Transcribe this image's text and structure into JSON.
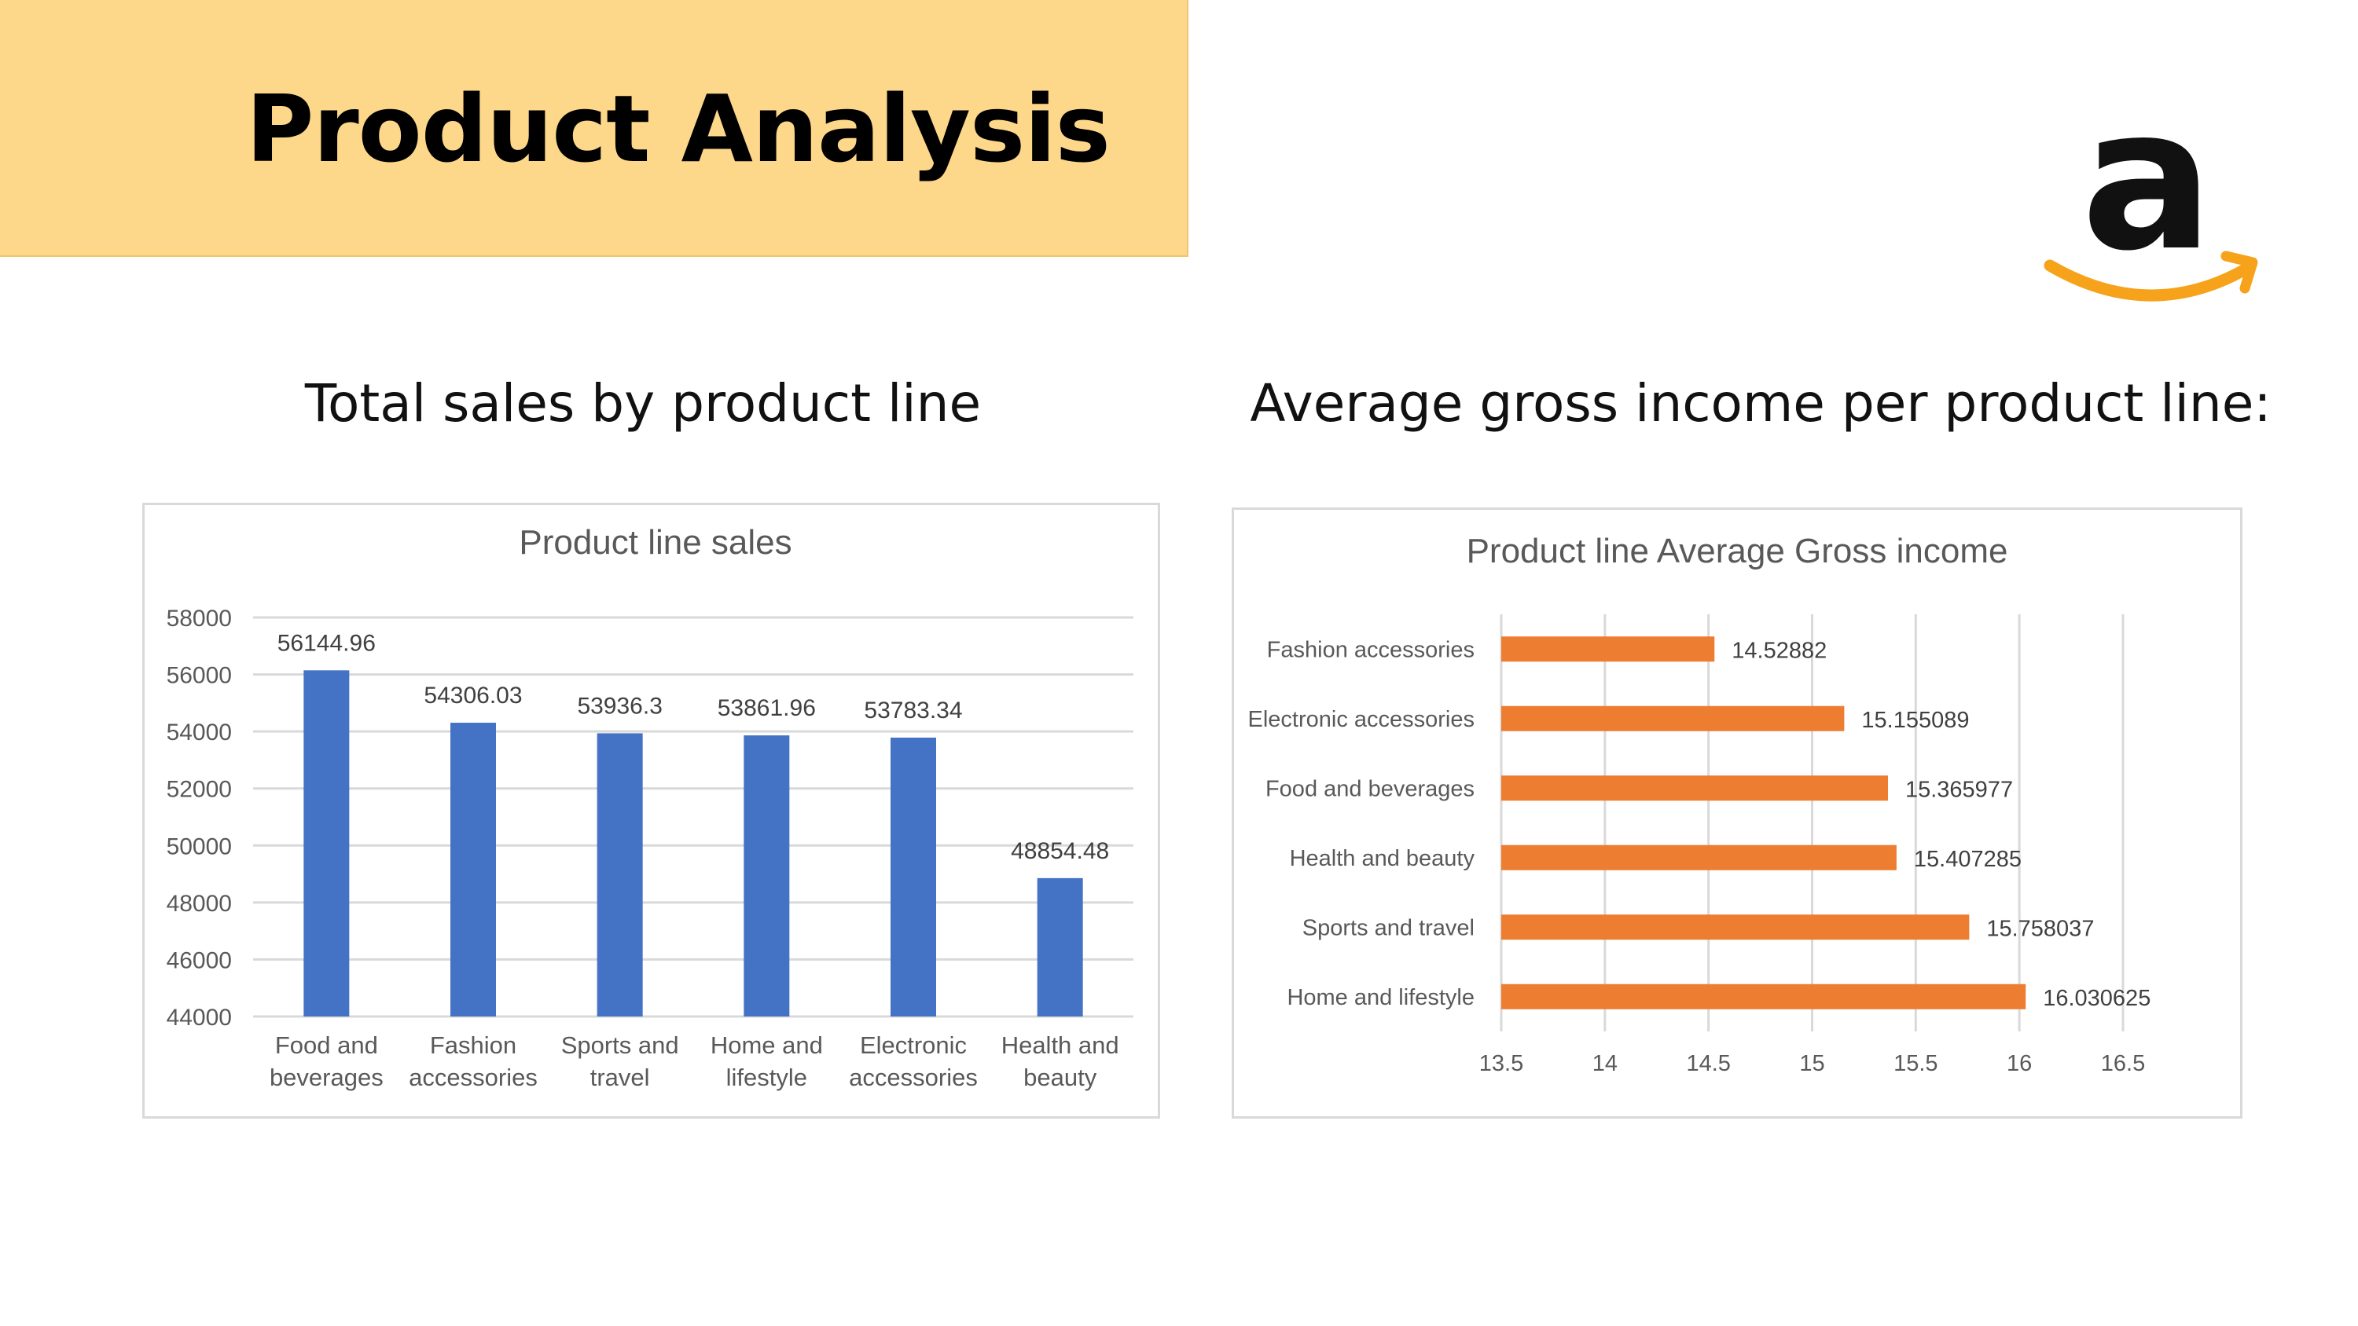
{
  "page": {
    "title": "Product Analysis",
    "left_heading": "Total sales by product line",
    "right_heading": "Average gross income per product line:"
  },
  "logo": {
    "name": "amazon-logo",
    "letter": "a",
    "colors": {
      "letter": "#111111",
      "smile": "#f7a21b"
    }
  },
  "colors": {
    "banner": "#fdd78a",
    "bar_blue": "#4472c4",
    "bar_orange": "#ed7d31",
    "grid": "#d9d9d9",
    "axis_text": "#595959"
  },
  "chart_data": [
    {
      "type": "bar",
      "title": "Product line sales",
      "categories": [
        "Food and beverages",
        "Fashion accessories",
        "Sports and travel",
        "Home and lifestyle",
        "Electronic accessories",
        "Health and beauty"
      ],
      "category_lines": [
        [
          "Food and",
          "beverages"
        ],
        [
          "Fashion",
          "accessories"
        ],
        [
          "Sports and",
          "travel"
        ],
        [
          "Home and",
          "lifestyle"
        ],
        [
          "Electronic",
          "accessories"
        ],
        [
          "Health and",
          "beauty"
        ]
      ],
      "values": [
        56144.96,
        54306.03,
        53936.3,
        53861.96,
        53783.34,
        48854.48
      ],
      "data_labels": [
        "56144.96",
        "54306.03",
        "53936.3",
        "53861.96",
        "53783.34",
        "48854.48"
      ],
      "ylim": [
        44000,
        58000
      ],
      "yticks": [
        44000,
        46000,
        48000,
        50000,
        52000,
        54000,
        56000,
        58000
      ],
      "xlabel": "",
      "ylabel": "",
      "grid": true,
      "legend": "none",
      "color": "#4472c4"
    },
    {
      "type": "bar",
      "orientation": "horizontal",
      "title": "Product line Average Gross income",
      "categories": [
        "Fashion accessories",
        "Electronic accessories",
        "Food and beverages",
        "Health and beauty",
        "Sports and travel",
        "Home and lifestyle"
      ],
      "values": [
        14.52882,
        15.155089,
        15.365977,
        15.407285,
        15.758037,
        16.030625
      ],
      "data_labels": [
        "14.52882",
        "15.155089",
        "15.365977",
        "15.407285",
        "15.758037",
        "16.030625"
      ],
      "xlim": [
        13.5,
        16.5
      ],
      "xticks": [
        13.5,
        14,
        14.5,
        15,
        15.5,
        16,
        16.5
      ],
      "xlabel": "",
      "ylabel": "",
      "grid": true,
      "legend": "none",
      "color": "#ed7d31"
    }
  ]
}
